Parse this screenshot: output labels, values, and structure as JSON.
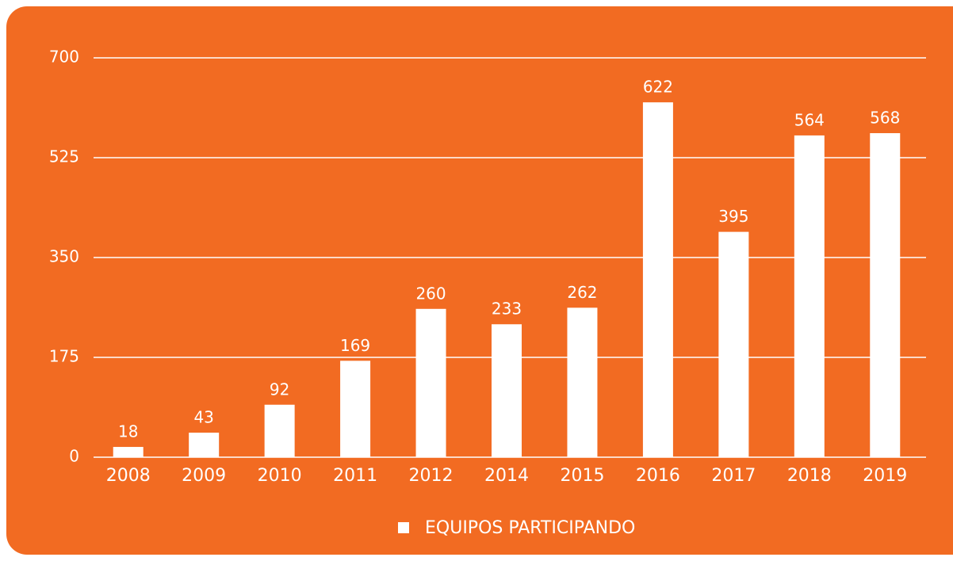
{
  "chart_data": {
    "type": "bar",
    "categories": [
      "2008",
      "2009",
      "2010",
      "2011",
      "2012",
      "2014",
      "2015",
      "2016",
      "2017",
      "2018",
      "2019"
    ],
    "series": [
      {
        "name": "EQUIPOS PARTICIPANDO",
        "color": "#ffffff",
        "values": [
          18,
          43,
          92,
          169,
          260,
          233,
          262,
          622,
          395,
          564,
          568
        ]
      }
    ],
    "ylim": [
      0,
      700
    ],
    "yticks": [
      0,
      175,
      350,
      525,
      700
    ],
    "grid": true,
    "background": "#f26b22",
    "legend": "bottom"
  }
}
